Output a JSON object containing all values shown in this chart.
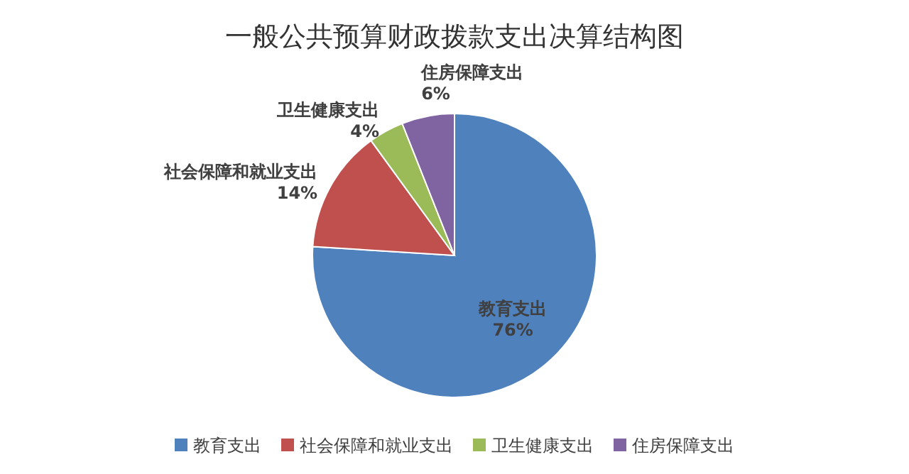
{
  "chart_data": {
    "type": "pie",
    "title": "一般公共预算财政拨款支出决算结构图",
    "categories": [
      "教育支出",
      "社会保障和就业支出",
      "卫生健康支出",
      "住房保障支出"
    ],
    "values": [
      76,
      14,
      4,
      6
    ],
    "value_labels": [
      "76%",
      "14%",
      "4%",
      "6%"
    ],
    "colors": [
      "#4f81bd",
      "#c0504d",
      "#9bbb59",
      "#8064a2"
    ],
    "legend": "bottom"
  }
}
